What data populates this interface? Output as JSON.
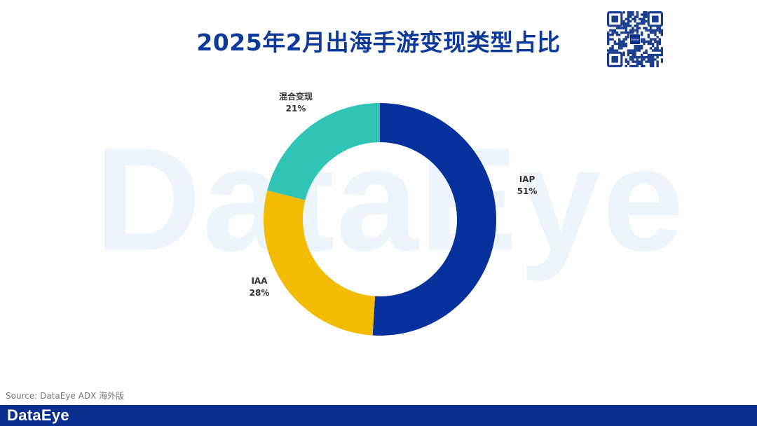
{
  "watermark_text": "DataEye",
  "title": "2025年2月出海手游变现类型占比",
  "source": "Source: DataEye ADX 海外版",
  "footer_logo": "DataEye",
  "qr_logo_text": "DataEye",
  "colors": {
    "title": "#0d3a9a",
    "footer": "#0a2f8f",
    "watermark": "#eef4fb"
  },
  "chart_data": {
    "type": "pie",
    "style": "donut",
    "title": "2025年2月出海手游变现类型占比",
    "slices": [
      {
        "label": "IAP",
        "value": 51,
        "pct_label": "51%",
        "color": "#06309c"
      },
      {
        "label": "IAA",
        "value": 28,
        "pct_label": "28%",
        "color": "#f2bb04"
      },
      {
        "label": "混合变现",
        "value": 21,
        "pct_label": "21%",
        "color": "#2fc4b5"
      }
    ],
    "legend": "none"
  }
}
